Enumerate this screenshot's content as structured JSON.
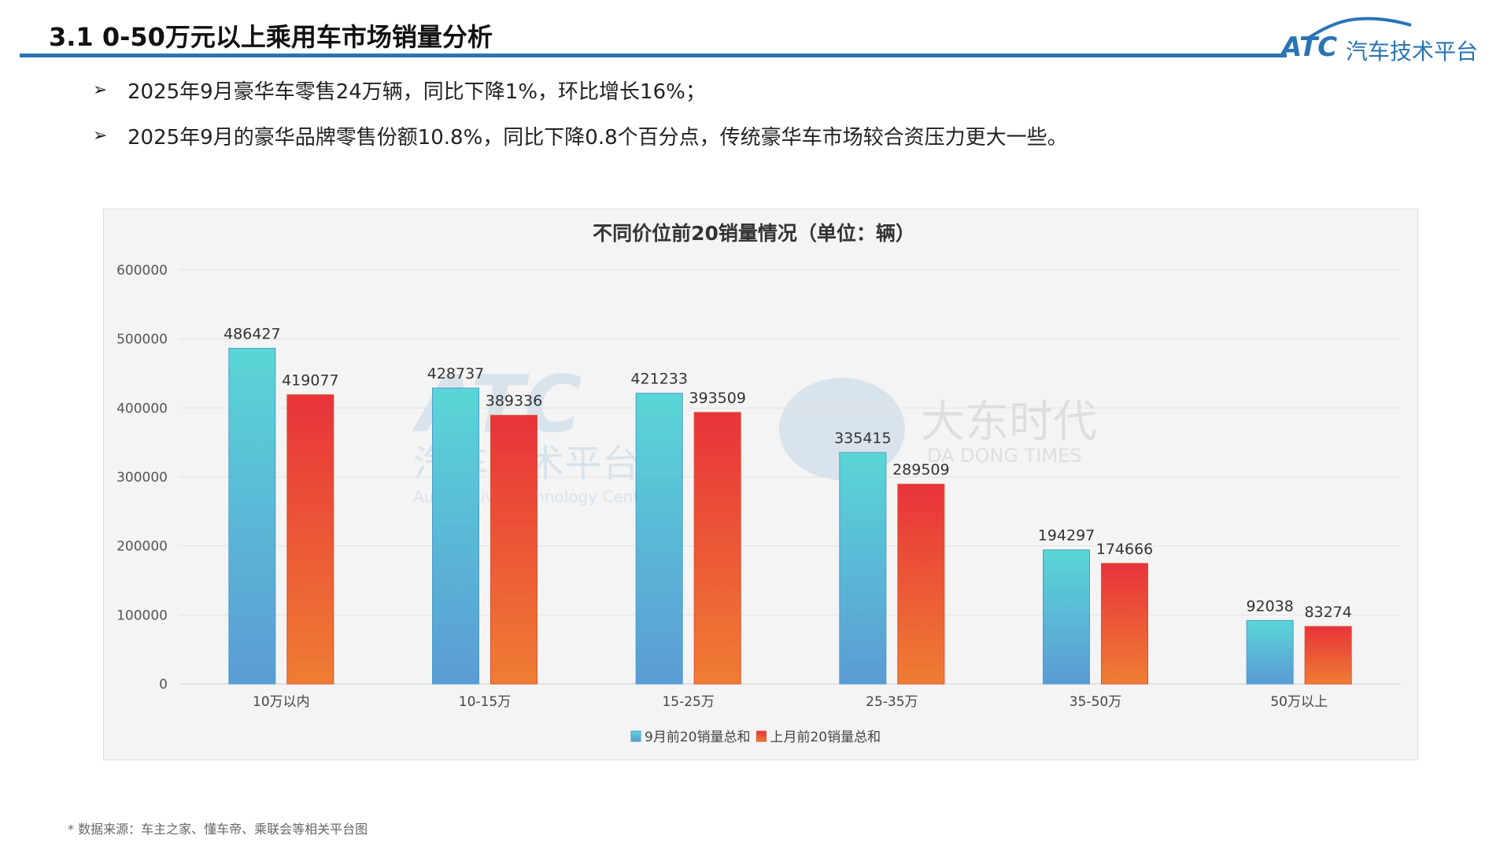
{
  "header": {
    "title": "3.1 0-50万元以上乘用车市场销量分析",
    "logo_text": "ATC",
    "logo_cn": "汽车技术平台"
  },
  "bullets": [
    "2025年9月豪华车零售24万辆，同比下降1%，环比增长16%；",
    "2025年9月的豪华品牌零售份额10.8%，同比下降0.8个百分点，传统豪华车市场较合资压力更大一些。"
  ],
  "watermarks": {
    "atc_cn": "汽车技术平台",
    "atc_en": "Automotive Technology Center",
    "dd_cn": "大东时代",
    "dd_en": "DA DONG TIMES"
  },
  "chart_data": {
    "type": "bar",
    "title": "不同价位前20销量情况（单位：辆）",
    "categories": [
      "10万以内",
      "10-15万",
      "15-25万",
      "25-35万",
      "35-50万",
      "50万以上"
    ],
    "series": [
      {
        "name": "9月前20销量总和",
        "values": [
          486427,
          428737,
          421233,
          335415,
          194297,
          92038
        ],
        "color": [
          "#5ad6d6",
          "#5b9bd5"
        ]
      },
      {
        "name": "上月前20销量总和",
        "values": [
          419077,
          389336,
          393509,
          289509,
          174666,
          83274
        ],
        "color": [
          "#e8333a",
          "#ef7d33"
        ]
      }
    ],
    "ylim": [
      0,
      600000
    ],
    "yticks": [
      0,
      100000,
      200000,
      300000,
      400000,
      500000,
      600000
    ],
    "grid": true,
    "legend": "bottom"
  },
  "footnote": "* 数据来源：车主之家、懂车帝、乘联会等相关平台图"
}
